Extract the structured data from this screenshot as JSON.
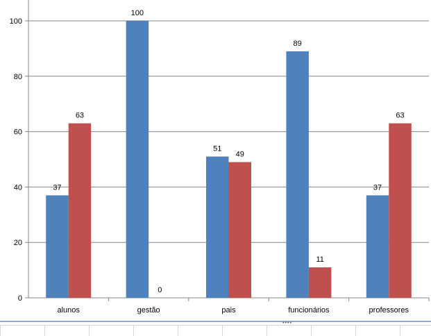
{
  "chart_data": {
    "type": "bar",
    "categories": [
      "alunos",
      "gestão",
      "pais",
      "funcionários",
      "professores"
    ],
    "series": [
      {
        "values": [
          37,
          100,
          51,
          89,
          37
        ],
        "color": "#4f81bd"
      },
      {
        "values": [
          63,
          0,
          49,
          11,
          63
        ],
        "color": "#c0504d"
      }
    ],
    "title": "",
    "xlabel": "",
    "ylabel": "",
    "ylim": [
      0,
      100
    ],
    "yticks": [
      0,
      20,
      40,
      60,
      80,
      100
    ],
    "grid": true,
    "legend": "none",
    "data_labels": true
  },
  "spreadsheet": {
    "handle_label": "••••"
  }
}
